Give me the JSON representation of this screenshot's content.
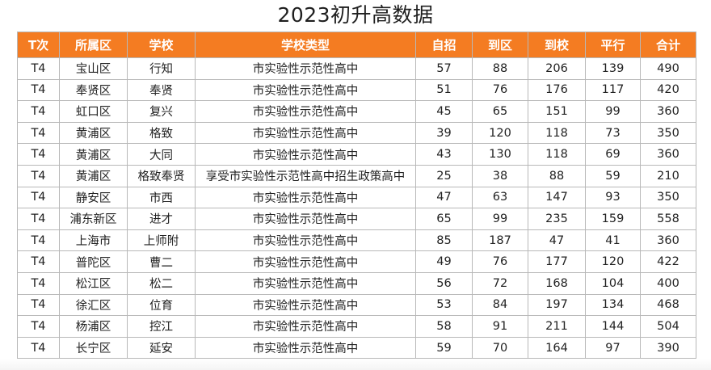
{
  "title": "2023初升高数据",
  "table": {
    "headers": [
      "T次",
      "所属区",
      "学校",
      "学校类型",
      "自招",
      "到区",
      "到校",
      "平行",
      "合计"
    ],
    "rows": [
      [
        "T4",
        "宝山区",
        "行知",
        "市实验性示范性高中",
        "57",
        "88",
        "206",
        "139",
        "490"
      ],
      [
        "T4",
        "奉贤区",
        "奉贤",
        "市实验性示范性高中",
        "51",
        "76",
        "176",
        "117",
        "420"
      ],
      [
        "T4",
        "虹口区",
        "复兴",
        "市实验性示范性高中",
        "45",
        "65",
        "151",
        "99",
        "360"
      ],
      [
        "T4",
        "黄浦区",
        "格致",
        "市实验性示范性高中",
        "39",
        "120",
        "118",
        "73",
        "350"
      ],
      [
        "T4",
        "黄浦区",
        "大同",
        "市实验性示范性高中",
        "43",
        "130",
        "118",
        "69",
        "360"
      ],
      [
        "T4",
        "黄浦区",
        "格致奉贤",
        "享受市实验性示范性高中招生政策高中",
        "25",
        "38",
        "88",
        "59",
        "210"
      ],
      [
        "T4",
        "静安区",
        "市西",
        "市实验性示范性高中",
        "47",
        "63",
        "147",
        "93",
        "350"
      ],
      [
        "T4",
        "浦东新区",
        "进才",
        "市实验性示范性高中",
        "65",
        "99",
        "235",
        "159",
        "558"
      ],
      [
        "T4",
        "上海市",
        "上师附",
        "市实验性示范性高中",
        "85",
        "187",
        "47",
        "41",
        "360"
      ],
      [
        "T4",
        "普陀区",
        "曹二",
        "市实验性示范性高中",
        "49",
        "76",
        "177",
        "120",
        "422"
      ],
      [
        "T4",
        "松江区",
        "松二",
        "市实验性示范性高中",
        "56",
        "72",
        "168",
        "104",
        "400"
      ],
      [
        "T4",
        "徐汇区",
        "位育",
        "市实验性示范性高中",
        "53",
        "84",
        "197",
        "134",
        "468"
      ],
      [
        "T4",
        "杨浦区",
        "控江",
        "市实验性示范性高中",
        "58",
        "91",
        "211",
        "144",
        "504"
      ],
      [
        "T4",
        "长宁区",
        "延安",
        "市实验性示范性高中",
        "59",
        "70",
        "164",
        "97",
        "390"
      ]
    ]
  },
  "colors": {
    "header_bg": "#f47c22",
    "header_text": "#ffffff",
    "border": "#b8b8b8"
  }
}
